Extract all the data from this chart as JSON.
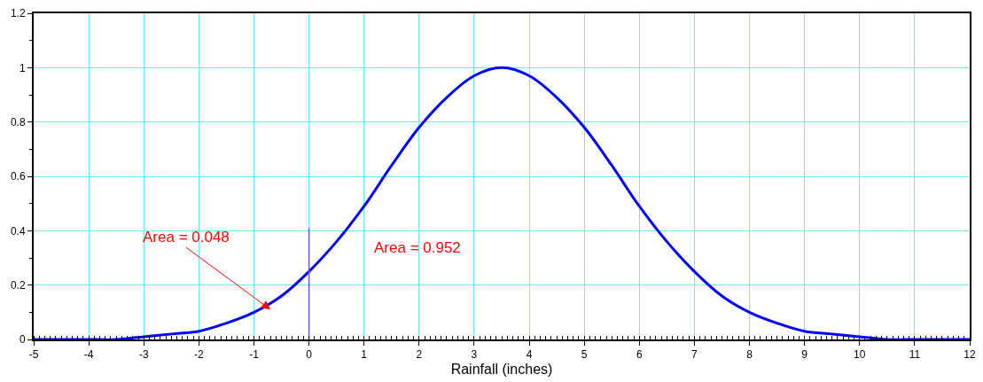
{
  "chart_data": {
    "type": "line",
    "xlabel": "Rainfall (inches)",
    "x": [
      -5,
      -4.5,
      -4,
      -3.5,
      -3,
      -2.5,
      -2,
      -1.5,
      -1,
      -0.5,
      0,
      0.5,
      1,
      1.5,
      2,
      2.5,
      3,
      3.5,
      4,
      4.5,
      5,
      5.5,
      6,
      6.5,
      7,
      7.5,
      8,
      8.5,
      9,
      9.5,
      10,
      10.5,
      11,
      11.5,
      12
    ],
    "series": [
      {
        "color": "#0000ff",
        "values": [
          0,
          0,
          0,
          0,
          0.01,
          0.02,
          0.03,
          0.06,
          0.1,
          0.16,
          0.25,
          0.36,
          0.49,
          0.64,
          0.78,
          0.89,
          0.97,
          1,
          0.97,
          0.89,
          0.78,
          0.64,
          0.49,
          0.36,
          0.25,
          0.16,
          0.1,
          0.06,
          0.03,
          0.02,
          0.01,
          0,
          0,
          0,
          0
        ]
      },
      {
        "color": "#6a5acd",
        "x": [
          0,
          0
        ],
        "values": [
          0,
          0.41
        ]
      }
    ],
    "xlim": [
      -5,
      12
    ],
    "xticks": [
      -5,
      -4,
      -3,
      -2,
      -1,
      0,
      1,
      2,
      3,
      4,
      5,
      6,
      7,
      8,
      9,
      10,
      11,
      12
    ],
    "ylim": [
      0,
      1.2
    ],
    "yticks": [
      0,
      0.2,
      0.4,
      0.6,
      0.8,
      1,
      1.2
    ],
    "grid": true,
    "marker": "none",
    "line_style": "solid",
    "annotations": [
      {
        "text": "Area = 0.048",
        "x": -0.7,
        "y": 0.11
      },
      "Area = 0.952"
    ]
  }
}
